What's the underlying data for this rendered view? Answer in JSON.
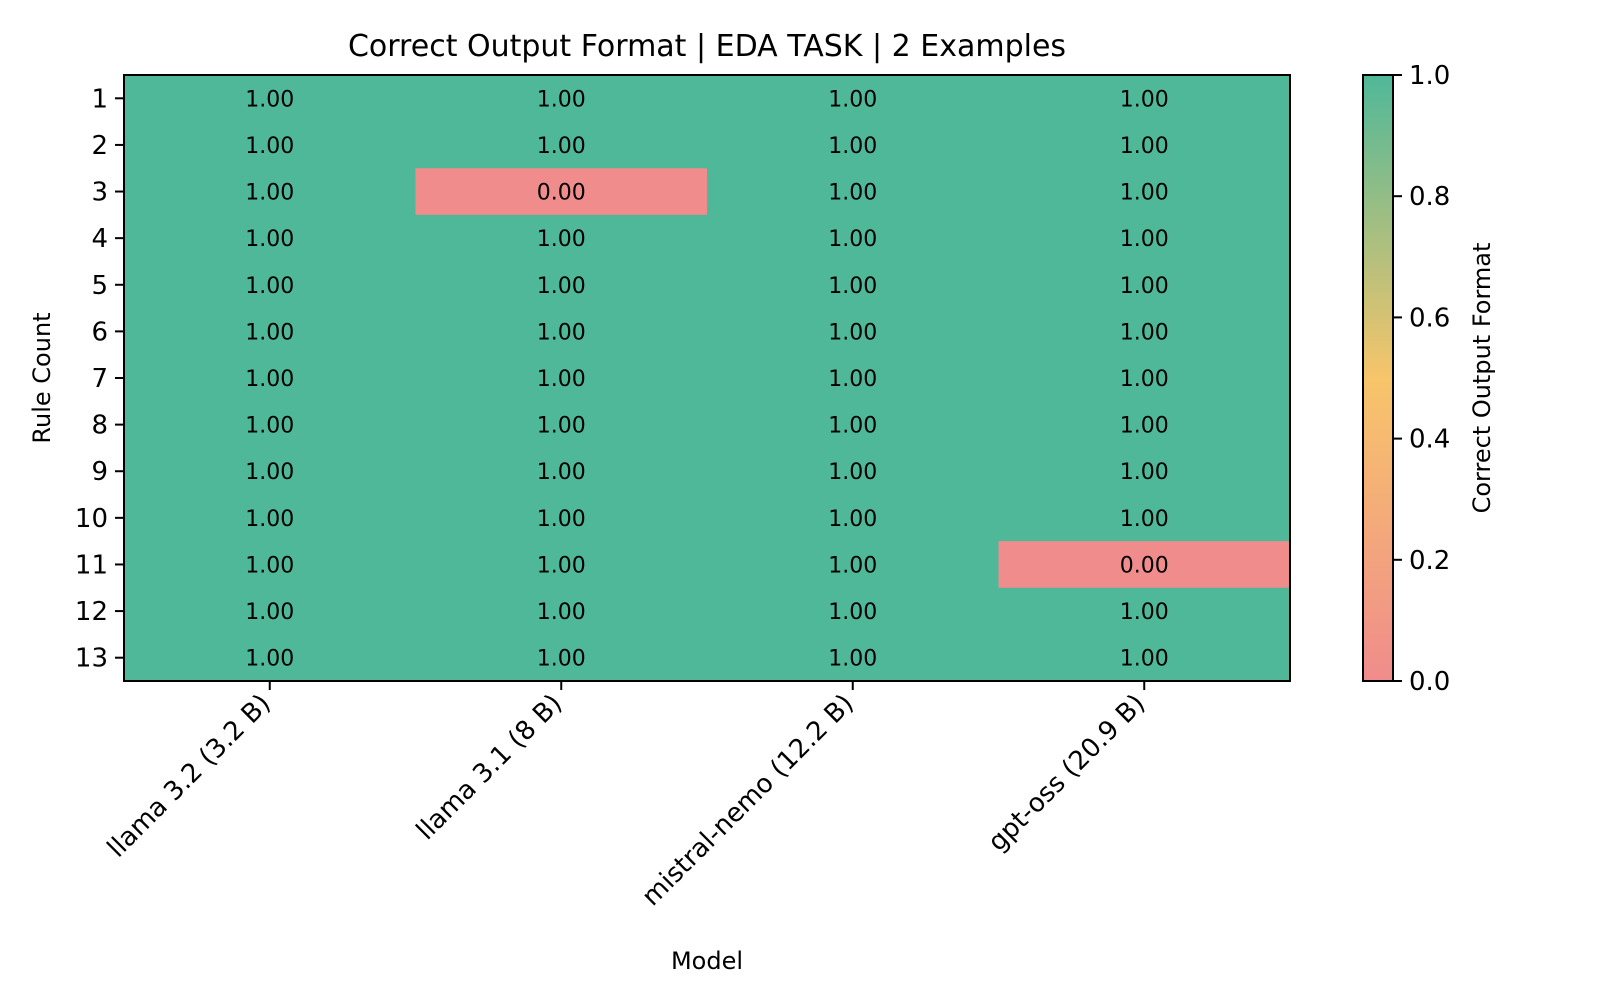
{
  "chart_data": {
    "type": "heatmap",
    "title": "Correct Output Format | EDA TASK | 2 Examples",
    "xlabel": "Model",
    "ylabel": "Rule Count",
    "x_categories": [
      "llama 3.2 (3.2 B)",
      "llama 3.1 (8 B)",
      "mistral-nemo (12.2 B)",
      "gpt-oss (20.9 B)"
    ],
    "y_categories": [
      "1",
      "2",
      "3",
      "4",
      "5",
      "6",
      "7",
      "8",
      "9",
      "10",
      "11",
      "12",
      "13"
    ],
    "values": [
      [
        1.0,
        1.0,
        1.0,
        1.0
      ],
      [
        1.0,
        1.0,
        1.0,
        1.0
      ],
      [
        1.0,
        0.0,
        1.0,
        1.0
      ],
      [
        1.0,
        1.0,
        1.0,
        1.0
      ],
      [
        1.0,
        1.0,
        1.0,
        1.0
      ],
      [
        1.0,
        1.0,
        1.0,
        1.0
      ],
      [
        1.0,
        1.0,
        1.0,
        1.0
      ],
      [
        1.0,
        1.0,
        1.0,
        1.0
      ],
      [
        1.0,
        1.0,
        1.0,
        1.0
      ],
      [
        1.0,
        1.0,
        1.0,
        1.0
      ],
      [
        1.0,
        1.0,
        1.0,
        0.0
      ],
      [
        1.0,
        1.0,
        1.0,
        1.0
      ],
      [
        1.0,
        1.0,
        1.0,
        1.0
      ]
    ],
    "value_format": "2 decimals",
    "colorbar": {
      "label": "Correct Output Format",
      "range": [
        0.0,
        1.0
      ],
      "ticks": [
        "0.0",
        "0.2",
        "0.4",
        "0.6",
        "0.8",
        "1.0"
      ],
      "colors": [
        "#F08C8C",
        "#F7C56A",
        "#4FB899"
      ]
    },
    "grid": false
  }
}
